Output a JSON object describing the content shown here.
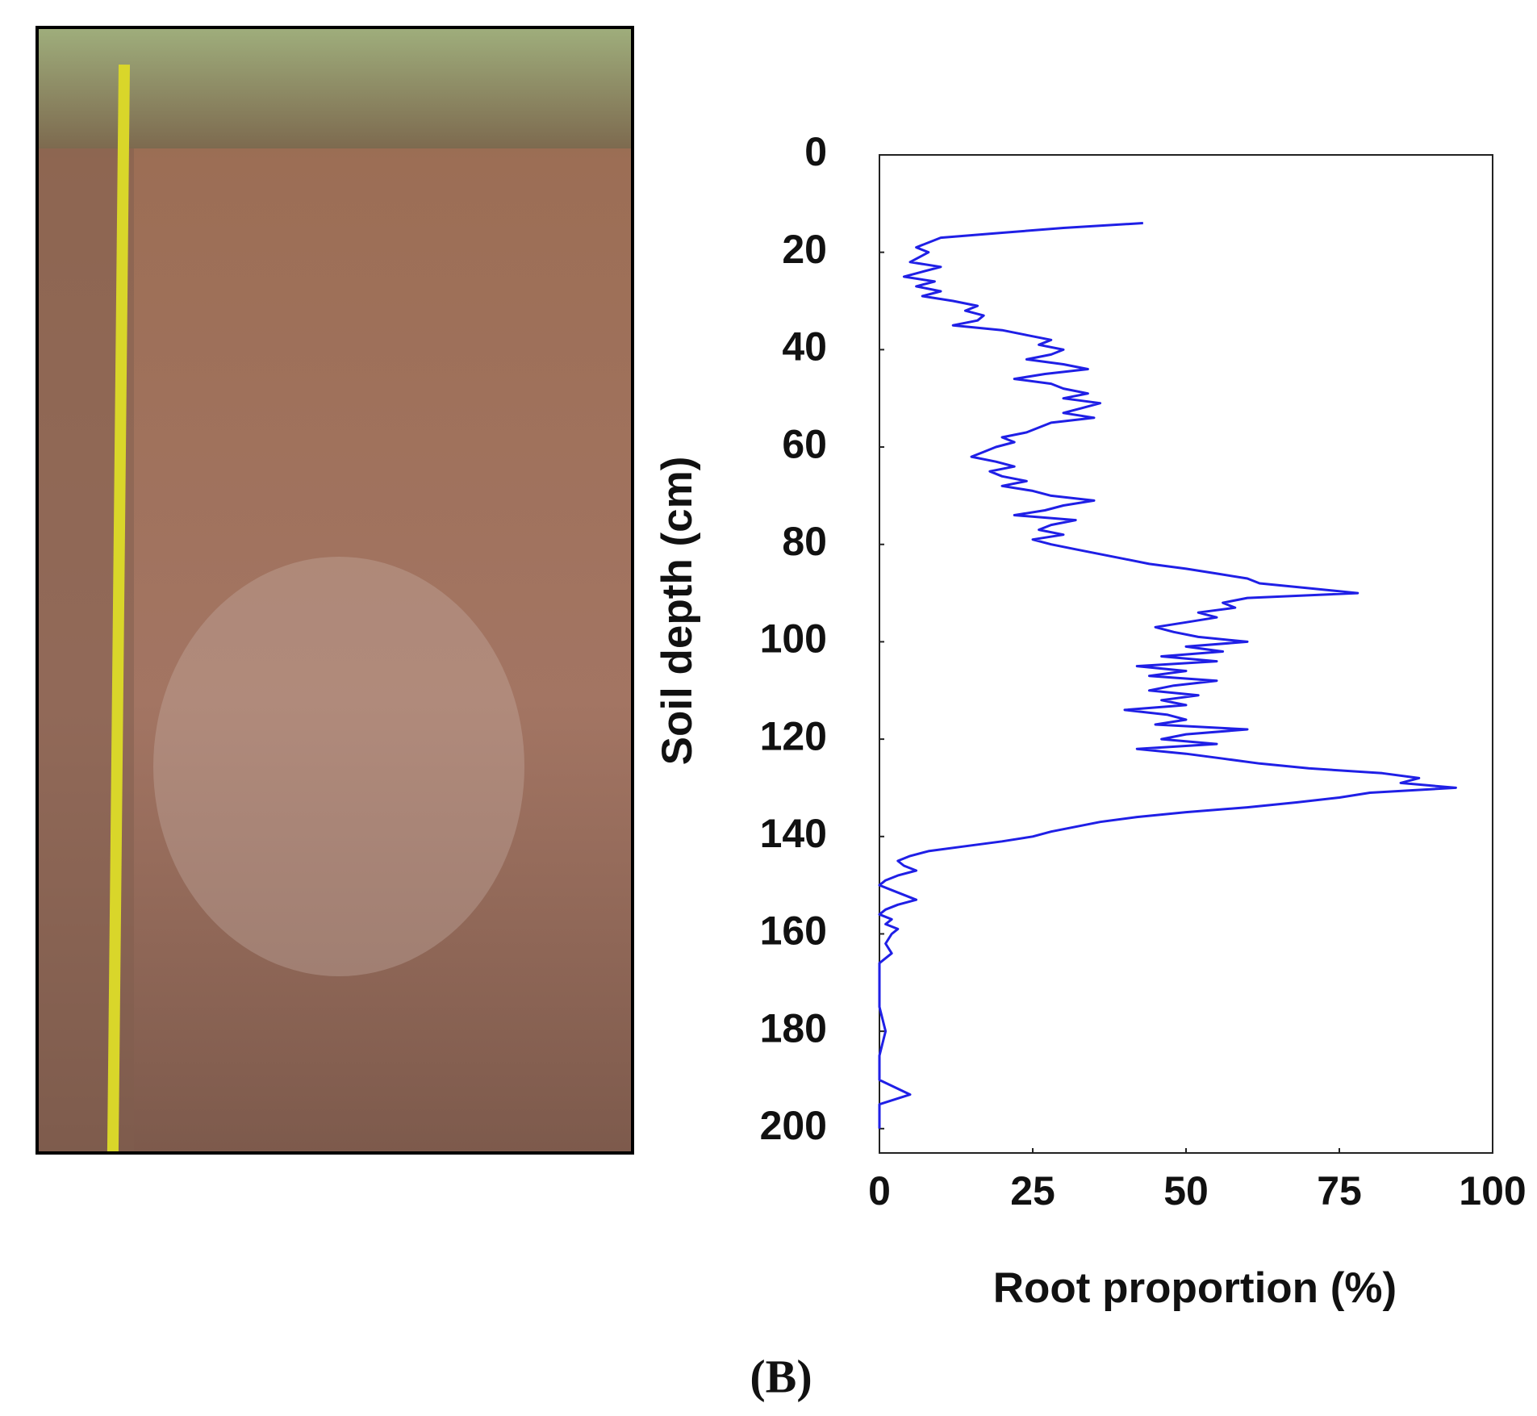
{
  "chart_data": {
    "type": "line",
    "label": "(B)",
    "x_label": "Root proportion (%)",
    "y_label": "Soil depth (cm)",
    "xlim": [
      0,
      100
    ],
    "xticks": [
      0,
      25,
      50,
      75,
      100
    ],
    "ylim": [
      0,
      205
    ],
    "yticks": [
      0,
      20,
      40,
      60,
      80,
      100,
      120,
      140,
      160,
      180,
      200
    ],
    "y_inverted": true,
    "y": [
      14,
      15,
      16,
      17,
      19,
      20,
      22,
      23,
      24,
      25,
      26,
      27,
      28,
      29,
      30,
      31,
      32,
      33,
      34,
      35,
      36,
      37,
      38,
      39,
      40,
      41,
      42,
      43,
      44,
      45,
      46,
      47,
      48,
      49,
      50,
      51,
      52,
      53,
      54,
      55,
      56,
      57,
      58,
      59,
      60,
      61,
      62,
      63,
      64,
      65,
      66,
      67,
      68,
      69,
      70,
      71,
      72,
      73,
      74,
      75,
      76,
      77,
      78,
      79,
      80,
      81,
      82,
      83,
      84,
      85,
      86,
      87,
      88,
      89,
      90,
      91,
      92,
      93,
      94,
      95,
      96,
      97,
      98,
      99,
      100,
      101,
      102,
      103,
      104,
      105,
      106,
      107,
      108,
      109,
      110,
      111,
      112,
      113,
      114,
      115,
      116,
      117,
      118,
      119,
      120,
      121,
      122,
      123,
      124,
      125,
      126,
      127,
      128,
      129,
      130,
      131,
      132,
      133,
      134,
      135,
      136,
      137,
      138,
      139,
      140,
      141,
      142,
      143,
      144,
      145,
      146,
      147,
      148,
      149,
      150,
      151,
      152,
      153,
      154,
      155,
      156,
      157,
      158,
      159,
      160,
      162,
      164,
      166,
      170,
      175,
      180,
      185,
      190,
      193,
      195,
      200
    ],
    "series": [
      {
        "name": "Root proportion",
        "color": "#1f1fe6",
        "values": [
          43,
          30,
          20,
          10,
          6,
          8,
          5,
          10,
          7,
          4,
          9,
          6,
          10,
          7,
          12,
          16,
          14,
          17,
          16,
          12,
          20,
          24,
          28,
          26,
          30,
          28,
          24,
          30,
          34,
          27,
          22,
          28,
          30,
          34,
          30,
          36,
          33,
          30,
          35,
          28,
          26,
          24,
          20,
          22,
          19,
          17,
          15,
          19,
          22,
          18,
          20,
          24,
          20,
          25,
          28,
          35,
          30,
          27,
          22,
          32,
          28,
          26,
          30,
          25,
          28,
          32,
          36,
          40,
          44,
          50,
          55,
          60,
          62,
          70,
          78,
          60,
          56,
          58,
          52,
          55,
          50,
          45,
          48,
          52,
          60,
          50,
          56,
          46,
          55,
          42,
          50,
          44,
          55,
          48,
          44,
          52,
          46,
          50,
          40,
          47,
          50,
          45,
          60,
          50,
          46,
          55,
          42,
          50,
          56,
          62,
          70,
          82,
          88,
          85,
          94,
          80,
          75,
          68,
          60,
          50,
          42,
          36,
          32,
          28,
          25,
          20,
          14,
          8,
          5,
          3,
          4,
          6,
          3,
          1,
          0,
          2,
          4,
          6,
          3,
          1,
          0,
          2,
          1,
          3,
          2,
          1,
          2,
          0,
          0,
          0,
          1,
          0,
          0,
          5,
          0,
          0
        ]
      }
    ]
  }
}
